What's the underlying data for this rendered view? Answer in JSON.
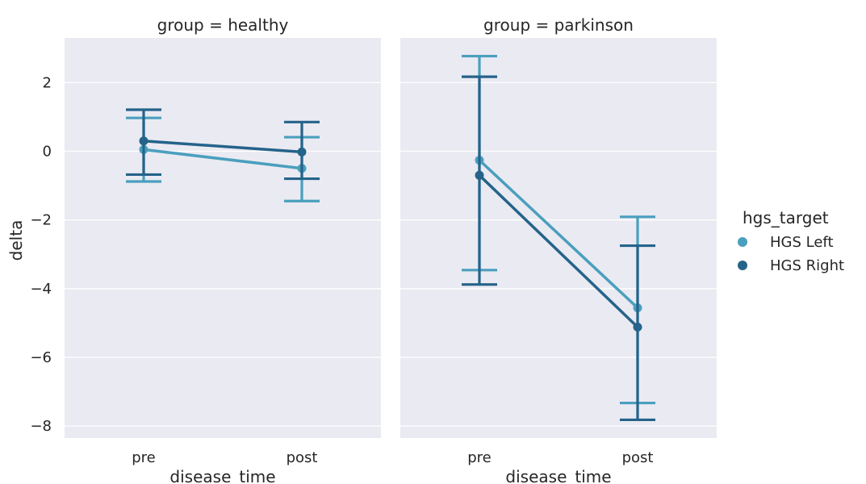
{
  "chart_data": {
    "type": "line",
    "xlabel": "disease_time",
    "ylabel": "delta",
    "categories": [
      "pre",
      "post"
    ],
    "ylim": [
      -8.35,
      3.3
    ],
    "yticks": [
      2,
      0,
      -2,
      -4,
      -6,
      -8
    ],
    "ytick_labels": [
      "2",
      "0",
      "−2",
      "−4",
      "−6",
      "−8"
    ],
    "grid": true,
    "legend": {
      "title": "hgs_target",
      "placement": "right",
      "entries": [
        "HGS Left",
        "HGS Right"
      ]
    },
    "colors": {
      "HGS Left": "#4a9fbe",
      "HGS Right": "#25638a",
      "background": "#eaeaf2",
      "grid": "#ffffff",
      "text": "#262626"
    },
    "facets": [
      {
        "title": "group = healthy",
        "series": [
          {
            "name": "HGS Left",
            "values": [
              0.05,
              -0.5
            ],
            "ci_low": [
              -0.88,
              -1.45
            ],
            "ci_high": [
              0.97,
              0.41
            ]
          },
          {
            "name": "HGS Right",
            "values": [
              0.3,
              -0.02
            ],
            "ci_low": [
              -0.68,
              -0.8
            ],
            "ci_high": [
              1.21,
              0.85
            ]
          }
        ]
      },
      {
        "title": "group = parkinson",
        "series": [
          {
            "name": "HGS Left",
            "values": [
              -0.26,
              -4.56
            ],
            "ci_low": [
              -3.46,
              -7.33
            ],
            "ci_high": [
              2.77,
              -1.91
            ]
          },
          {
            "name": "HGS Right",
            "values": [
              -0.7,
              -5.12
            ],
            "ci_low": [
              -3.88,
              -7.82
            ],
            "ci_high": [
              2.17,
              -2.75
            ]
          }
        ]
      }
    ]
  }
}
